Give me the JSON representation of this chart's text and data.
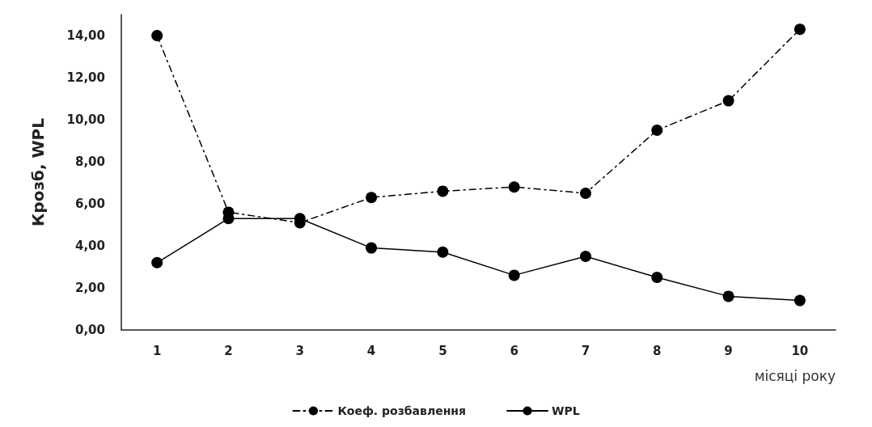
{
  "chart_data": {
    "type": "line",
    "xlabel": "місяці року",
    "ylabel": "Крозб, WPL",
    "categories": [
      "1",
      "2",
      "3",
      "4",
      "5",
      "6",
      "7",
      "8",
      "9",
      "10"
    ],
    "series": [
      {
        "name": "Коеф. розбавлення",
        "color": "#000000",
        "line_style": "dashed",
        "values": [
          14.0,
          5.6,
          5.1,
          6.3,
          6.6,
          6.8,
          6.5,
          9.5,
          10.9,
          14.3
        ]
      },
      {
        "name": "WPL",
        "color": "#000000",
        "line_style": "solid",
        "values": [
          3.2,
          5.3,
          5.3,
          3.9,
          3.7,
          2.6,
          3.5,
          2.5,
          1.6,
          1.4
        ]
      }
    ],
    "ylim": [
      0,
      15
    ],
    "yticks": [
      {
        "value": 0,
        "label": "0,00"
      },
      {
        "value": 2,
        "label": "2,00"
      },
      {
        "value": 4,
        "label": "4,00"
      },
      {
        "value": 6,
        "label": "6,00"
      },
      {
        "value": 8,
        "label": "8,00"
      },
      {
        "value": 10,
        "label": "10,00"
      },
      {
        "value": 12,
        "label": "12,00"
      },
      {
        "value": 14,
        "label": "14,00"
      }
    ],
    "grid": false,
    "legend": "bottom",
    "marker": "circle"
  }
}
